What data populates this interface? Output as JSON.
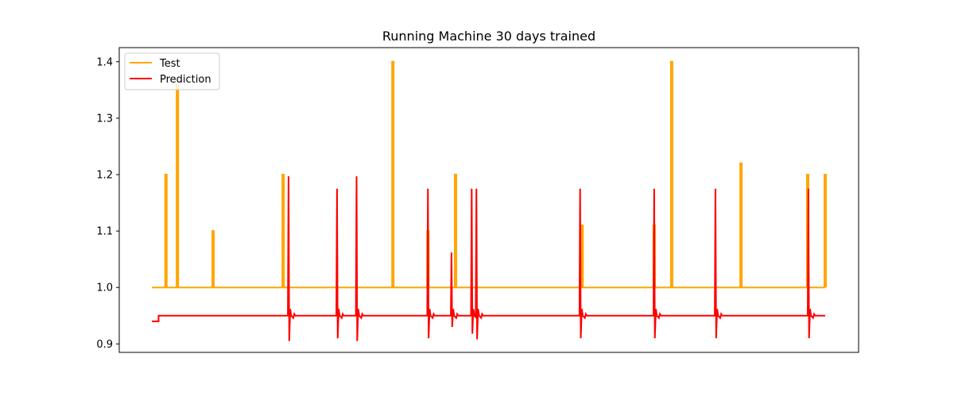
{
  "chart_data": {
    "type": "line",
    "title": "Running Machine 30 days trained",
    "xlabel": "",
    "ylabel": "",
    "xlim": [
      0,
      100
    ],
    "ylim": [
      0.885,
      1.425
    ],
    "x_ticks": [],
    "y_ticks": [
      0.9,
      1.0,
      1.1,
      1.2,
      1.3,
      1.4
    ],
    "grid": false,
    "legend_position": "top-left",
    "colors": {
      "test": "#FFA500",
      "prediction": "#FF0000",
      "axes": "#000000",
      "background": "#FFFFFF"
    },
    "series": [
      {
        "name": "Test",
        "color": "#FFA500",
        "spikes": [
          {
            "x": 2.1,
            "peak": 1.2
          },
          {
            "x": 3.8,
            "peak": 1.36
          },
          {
            "x": 9.1,
            "peak": 1.1
          },
          {
            "x": 19.5,
            "peak": 1.2
          },
          {
            "x": 35.8,
            "peak": 1.4
          },
          {
            "x": 41.0,
            "peak": 1.1
          },
          {
            "x": 45.1,
            "peak": 1.2
          },
          {
            "x": 63.9,
            "peak": 1.11
          },
          {
            "x": 74.6,
            "peak": 1.11
          },
          {
            "x": 77.2,
            "peak": 1.4
          },
          {
            "x": 87.5,
            "peak": 1.22
          },
          {
            "x": 97.4,
            "peak": 1.2
          },
          {
            "x": 100.0,
            "peak": 1.2
          }
        ],
        "baseline": 1.0
      },
      {
        "name": "Prediction",
        "color": "#FF0000",
        "start_value": 0.94,
        "step_x": 1.0,
        "baseline": 0.95,
        "spikes": [
          {
            "x": 20.3,
            "peak": 1.197,
            "dip": 0.905
          },
          {
            "x": 27.5,
            "peak": 1.175,
            "dip": 0.91
          },
          {
            "x": 30.4,
            "peak": 1.197,
            "dip": 0.905
          },
          {
            "x": 41.0,
            "peak": 1.175,
            "dip": 0.91
          },
          {
            "x": 44.5,
            "peak": 1.062,
            "dip": 0.93
          },
          {
            "x": 47.5,
            "peak": 1.175,
            "dip": 0.918
          },
          {
            "x": 48.2,
            "peak": 1.175,
            "dip": 0.908
          },
          {
            "x": 63.6,
            "peak": 1.175,
            "dip": 0.91
          },
          {
            "x": 74.6,
            "peak": 1.175,
            "dip": 0.91
          },
          {
            "x": 83.7,
            "peak": 1.175,
            "dip": 0.91
          },
          {
            "x": 97.5,
            "peak": 1.175,
            "dip": 0.91
          }
        ]
      }
    ]
  }
}
